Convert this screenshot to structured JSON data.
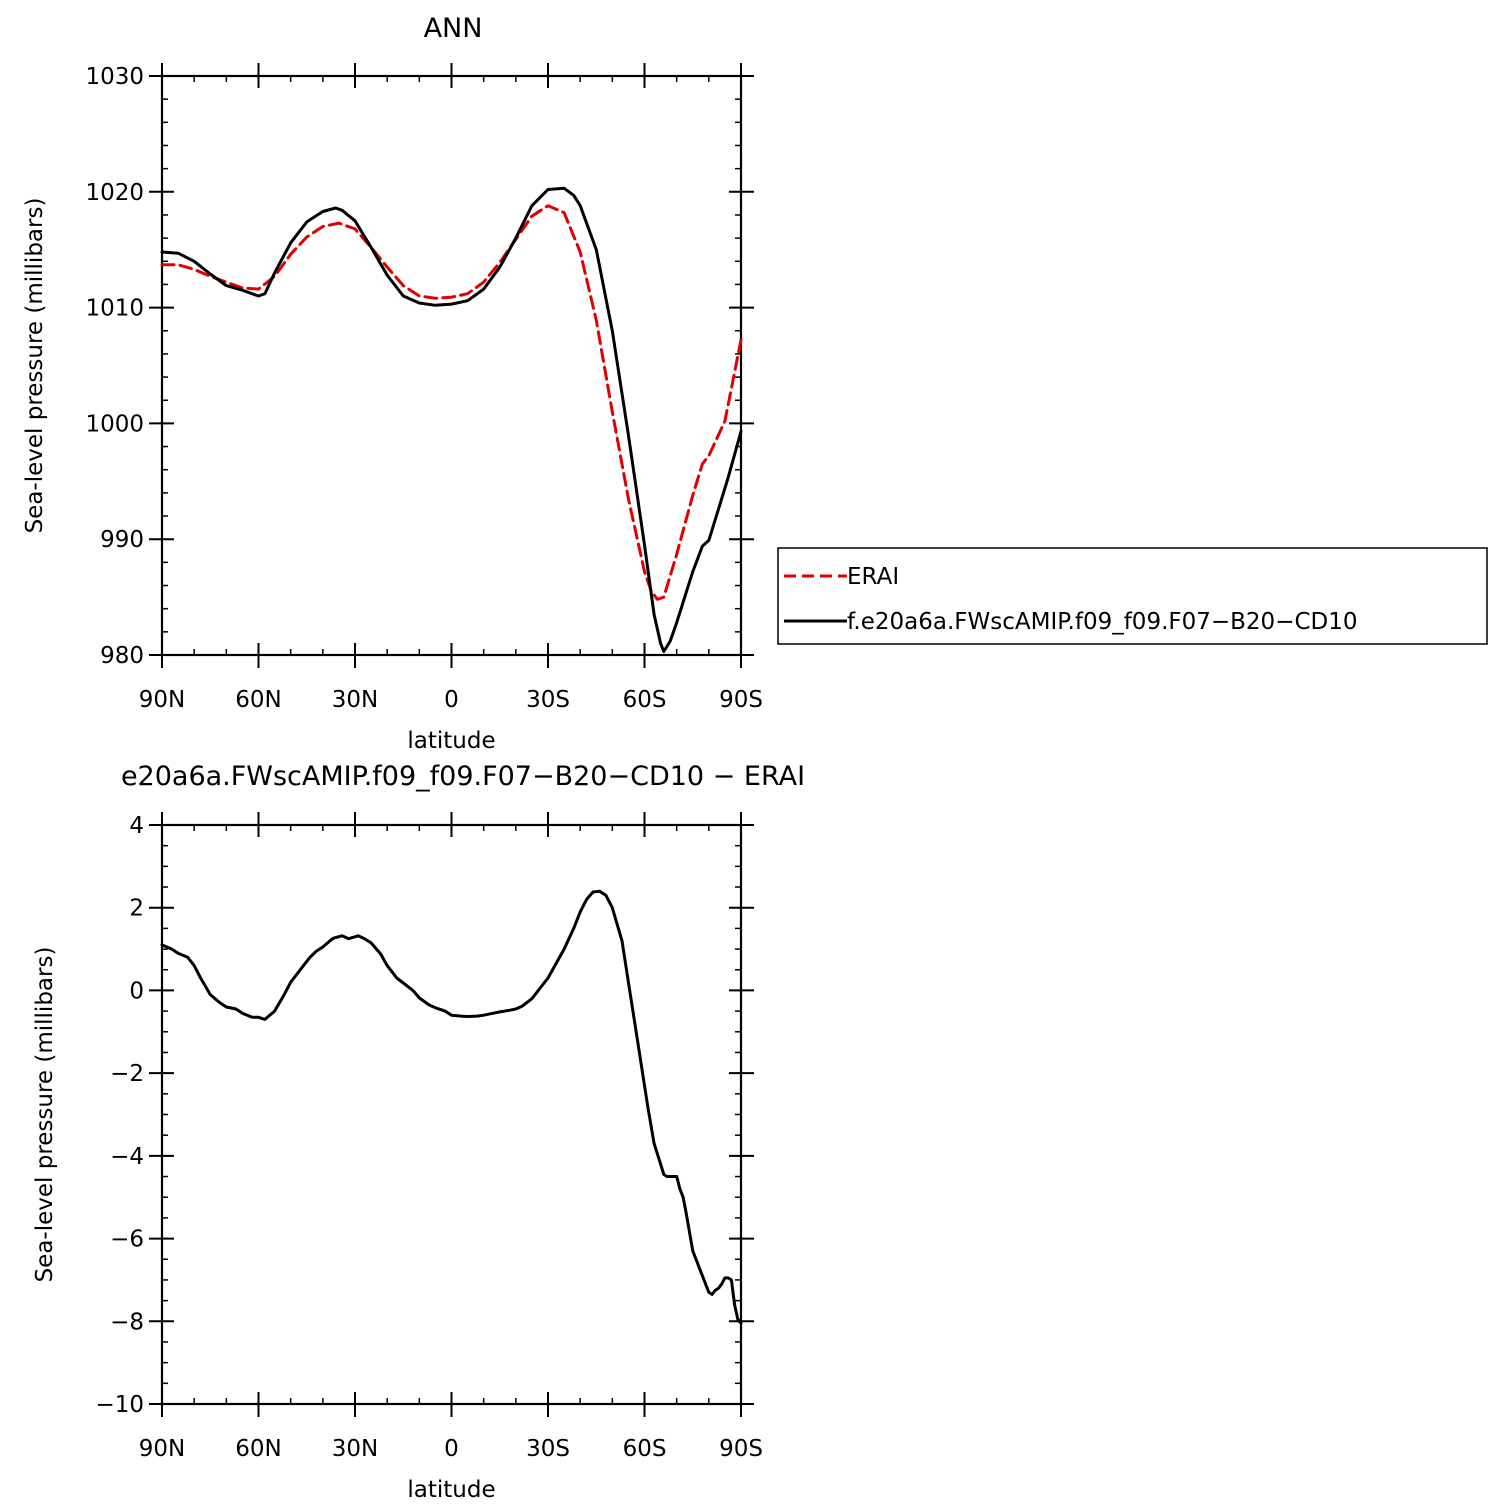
{
  "chart_data": [
    {
      "type": "line",
      "title": "ANN",
      "xlabel": "latitude",
      "ylabel": "Sea-level pressure (millibars)",
      "xlim": [
        90,
        -90
      ],
      "ylim": [
        980,
        1030
      ],
      "yticks": [
        980,
        990,
        1000,
        1010,
        1020,
        1030
      ],
      "xticks": [
        90,
        60,
        30,
        0,
        -30,
        -60,
        -90
      ],
      "xtick_labels": [
        "90N",
        "60N",
        "30N",
        "0",
        "30S",
        "60S",
        "90S"
      ],
      "legend": {
        "placement": "right",
        "entries": [
          "ERAI",
          "f.e20a6a.FWscAMIP.f09_f09.F07-B20-CD10"
        ]
      },
      "series": [
        {
          "name": "ERAI",
          "color": "#e00000",
          "style": "dashed",
          "x": [
            90,
            85,
            80,
            75,
            70,
            65,
            60,
            55,
            50,
            45,
            40,
            35,
            30,
            25,
            20,
            15,
            10,
            5,
            0,
            -5,
            -10,
            -15,
            -20,
            -25,
            -30,
            -35,
            -40,
            -45,
            -50,
            -55,
            -60,
            -62,
            -64,
            -66,
            -70,
            -75,
            -78,
            -80,
            -85,
            -90
          ],
          "y": [
            1013.7,
            1013.7,
            1013.3,
            1012.7,
            1012.2,
            1011.7,
            1011.6,
            1012.7,
            1014.6,
            1016.1,
            1017.0,
            1017.3,
            1016.8,
            1015.2,
            1013.5,
            1011.9,
            1011.0,
            1010.8,
            1010.9,
            1011.2,
            1012.2,
            1013.9,
            1015.9,
            1017.9,
            1018.8,
            1018.2,
            1014.8,
            1008.9,
            1001.0,
            993.5,
            987.2,
            985.6,
            984.8,
            985.0,
            988.7,
            993.8,
            996.5,
            997.2,
            1000.2,
            1007.2
          ]
        },
        {
          "name": "f.e20a6a.FWscAMIP.f09_f09.F07-B20-CD10",
          "color": "#000000",
          "style": "solid",
          "x": [
            90,
            85,
            80,
            75,
            70,
            65,
            60,
            58,
            55,
            50,
            45,
            40,
            36,
            34,
            30,
            25,
            20,
            15,
            10,
            5,
            0,
            -5,
            -10,
            -15,
            -20,
            -25,
            -30,
            -35,
            -38,
            -40,
            -45,
            -50,
            -55,
            -60,
            -63,
            -65,
            -66,
            -68,
            -70,
            -75,
            -78,
            -80,
            -83,
            -86,
            -90
          ],
          "y": [
            1014.8,
            1014.7,
            1014.0,
            1012.9,
            1011.9,
            1011.5,
            1011.0,
            1011.2,
            1013.0,
            1015.6,
            1017.4,
            1018.3,
            1018.6,
            1018.4,
            1017.5,
            1015.2,
            1012.8,
            1011.0,
            1010.4,
            1010.2,
            1010.3,
            1010.6,
            1011.6,
            1013.5,
            1016.0,
            1018.8,
            1020.2,
            1020.3,
            1019.7,
            1018.8,
            1015.0,
            1008.0,
            999.0,
            989.5,
            983.5,
            981.0,
            980.3,
            981.2,
            982.8,
            987.2,
            989.4,
            989.9,
            992.6,
            995.3,
            999.3
          ]
        }
      ]
    },
    {
      "type": "line",
      "title": "e20a6a.FWscAMIP.f09_f09.F07-B20-CD10 - ERAI",
      "xlabel": "latitude",
      "ylabel": "Sea-level pressure (millibars)",
      "xlim": [
        90,
        -90
      ],
      "ylim": [
        -10,
        4
      ],
      "yticks": [
        -10,
        -8,
        -6,
        -4,
        -2,
        0,
        2,
        4
      ],
      "xticks": [
        90,
        60,
        30,
        0,
        -30,
        -60,
        -90
      ],
      "xtick_labels": [
        "90N",
        "60N",
        "30N",
        "0",
        "30S",
        "60S",
        "90S"
      ],
      "series": [
        {
          "color": "#000000",
          "style": "solid",
          "x": [
            90,
            87,
            85,
            82,
            80,
            78,
            75,
            72,
            70,
            67,
            65,
            62,
            60,
            58,
            55,
            52,
            50,
            46,
            44,
            42,
            40,
            37,
            36,
            35,
            34,
            32,
            29,
            27,
            25,
            22,
            20,
            17,
            15,
            12,
            10,
            7,
            5,
            2,
            0,
            -3,
            -5,
            -8,
            -10,
            -13,
            -15,
            -18,
            -20,
            -22,
            -25,
            -30,
            -35,
            -38,
            -40,
            -42,
            -44,
            -46,
            -48,
            -50,
            -53,
            -55,
            -58,
            -61,
            -63,
            -65,
            -66,
            -67,
            -68,
            -70,
            -71,
            -72,
            -73,
            -75,
            -78,
            -79,
            -80,
            -81,
            -82,
            -83,
            -84,
            -85,
            -86,
            -87,
            -88,
            -89,
            -90
          ],
          "y": [
            1.1,
            1.0,
            0.9,
            0.8,
            0.6,
            0.3,
            -0.1,
            -0.3,
            -0.4,
            -0.45,
            -0.55,
            -0.65,
            -0.65,
            -0.7,
            -0.5,
            -0.1,
            0.2,
            0.6,
            0.8,
            0.95,
            1.05,
            1.25,
            1.28,
            1.3,
            1.32,
            1.25,
            1.32,
            1.25,
            1.15,
            0.88,
            0.6,
            0.3,
            0.18,
            0.0,
            -0.18,
            -0.35,
            -0.42,
            -0.5,
            -0.6,
            -0.62,
            -0.63,
            -0.62,
            -0.6,
            -0.55,
            -0.52,
            -0.48,
            -0.45,
            -0.38,
            -0.2,
            0.3,
            1.0,
            1.5,
            1.9,
            2.2,
            2.38,
            2.4,
            2.3,
            2.0,
            1.2,
            0.2,
            -1.3,
            -2.8,
            -3.7,
            -4.2,
            -4.45,
            -4.5,
            -4.5,
            -4.5,
            -4.8,
            -5.0,
            -5.4,
            -6.3,
            -6.9,
            -7.1,
            -7.3,
            -7.35,
            -7.25,
            -7.2,
            -7.1,
            -6.95,
            -6.95,
            -7.0,
            -7.6,
            -7.95,
            -8.05
          ]
        }
      ]
    }
  ]
}
